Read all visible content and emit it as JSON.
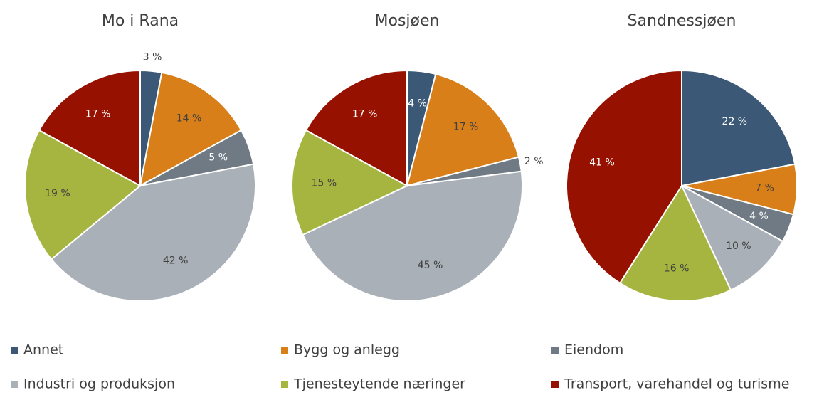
{
  "legend": {
    "categories": [
      "Annet",
      "Bygg og anlegg",
      "Eiendom",
      "Industri og produksjon",
      "Tjenesteytende næringer",
      "Transport, varehandel og turisme"
    ],
    "colors": [
      "#3b5876",
      "#d97f1a",
      "#6f7a84",
      "#a9b0b7",
      "#a6b540",
      "#971100"
    ]
  },
  "chart_data": [
    {
      "type": "pie",
      "title": "Mo i Rana",
      "values": [
        3,
        14,
        5,
        42,
        19,
        17
      ],
      "value_labels": [
        "3 %",
        "14 %",
        "5 %",
        "42 %",
        "19 %",
        "17 %"
      ]
    },
    {
      "type": "pie",
      "title": "Mosjøen",
      "values": [
        4,
        17,
        2,
        45,
        15,
        17
      ],
      "value_labels": [
        "4 %",
        "17 %",
        "2 %",
        "45 %",
        "15 %",
        "17 %"
      ]
    },
    {
      "type": "pie",
      "title": "Sandnessjøen",
      "values": [
        22,
        7,
        4,
        10,
        16,
        41
      ],
      "value_labels": [
        "22 %",
        "7 %",
        "4 %",
        "10 %",
        "16 %",
        "41 %"
      ]
    }
  ]
}
